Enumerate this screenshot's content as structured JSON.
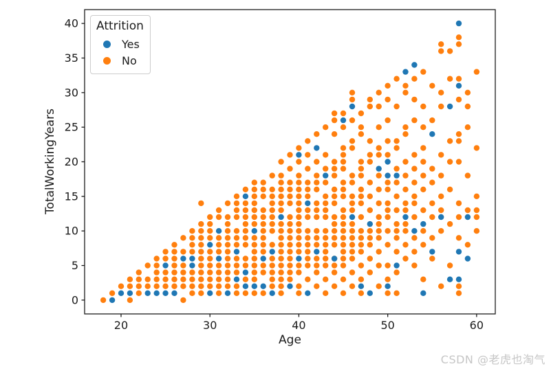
{
  "watermark": {
    "text": "CSDN @老虎也淘气"
  },
  "chart_data": {
    "type": "scatter",
    "title": "",
    "xlabel": "Age",
    "ylabel": "TotalWorkingYears",
    "grid": false,
    "legend": {
      "title": "Attrition",
      "position": "upper left"
    },
    "xlim": [
      15.9,
      62.1
    ],
    "ylim": [
      -2,
      42
    ],
    "x_ticks": [
      20,
      30,
      40,
      50,
      60
    ],
    "y_ticks": [
      0,
      5,
      10,
      15,
      20,
      25,
      30,
      35,
      40
    ],
    "series": [
      {
        "name": "Yes",
        "color": "#1f77b4",
        "points_by_age": {
          "19": [
            0
          ],
          "20": [
            1
          ],
          "21": [
            1
          ],
          "23": [
            1
          ],
          "24": [
            1
          ],
          "25": [
            1,
            5
          ],
          "26": [
            1
          ],
          "27": [
            6
          ],
          "28": [
            5,
            6
          ],
          "30": [
            1,
            8
          ],
          "31": [
            6,
            10
          ],
          "32": [
            1
          ],
          "33": [
            3,
            7
          ],
          "34": [
            2,
            4,
            15
          ],
          "35": [
            2,
            10
          ],
          "36": [
            2,
            6
          ],
          "37": [
            1,
            7
          ],
          "38": [
            12
          ],
          "39": [
            2
          ],
          "40": [
            6,
            21
          ],
          "41": [
            1,
            14
          ],
          "42": [
            7,
            22
          ],
          "43": [
            18
          ],
          "44": [
            6
          ],
          "45": [
            26
          ],
          "46": [
            12,
            28
          ],
          "47": [
            2
          ],
          "48": [
            1,
            11
          ],
          "49": [
            19
          ],
          "50": [
            2,
            18,
            20
          ],
          "51": [
            5,
            18
          ],
          "52": [
            12,
            33
          ],
          "53": [
            10,
            34
          ],
          "54": [
            1,
            11
          ],
          "55": [
            7,
            24
          ],
          "56": [
            12
          ],
          "57": [
            3,
            28
          ],
          "58": [
            3,
            7,
            31,
            40
          ],
          "59": [
            6,
            12
          ]
        }
      },
      {
        "name": "No",
        "color": "#ff7f0e",
        "points_by_age": {
          "18": [
            0
          ],
          "19": [
            1
          ],
          "20": [
            2
          ],
          "21": [
            0,
            2,
            3
          ],
          "22": [
            1,
            2,
            3,
            4
          ],
          "23": [
            2,
            3,
            5
          ],
          "24": [
            2,
            3,
            4,
            5,
            6
          ],
          "25": [
            2,
            3,
            4,
            6,
            7
          ],
          "26": [
            2,
            3,
            4,
            5,
            6,
            7,
            8
          ],
          "27": [
            0,
            2,
            3,
            4,
            5,
            7,
            9
          ],
          "28": [
            1,
            2,
            3,
            4,
            7,
            8,
            9,
            10
          ],
          "29": [
            1,
            2,
            3,
            4,
            5,
            6,
            7,
            8,
            9,
            10,
            11,
            14
          ],
          "30": [
            2,
            3,
            4,
            5,
            6,
            7,
            9,
            10,
            11,
            12
          ],
          "31": [
            1,
            2,
            3,
            4,
            5,
            7,
            8,
            9,
            12,
            13
          ],
          "32": [
            2,
            3,
            4,
            5,
            6,
            7,
            8,
            9,
            10,
            11,
            12,
            14
          ],
          "33": [
            1,
            2,
            4,
            5,
            6,
            8,
            9,
            10,
            12,
            13,
            14,
            15
          ],
          "34": [
            1,
            3,
            5,
            6,
            8,
            9,
            10,
            11,
            12,
            13,
            14,
            16
          ],
          "35": [
            1,
            3,
            4,
            5,
            6,
            7,
            8,
            9,
            11,
            12,
            13,
            14,
            15,
            16,
            17
          ],
          "36": [
            1,
            4,
            5,
            7,
            8,
            9,
            10,
            11,
            12,
            13,
            15,
            16,
            17
          ],
          "37": [
            2,
            3,
            4,
            5,
            6,
            8,
            10,
            11,
            12,
            13,
            14,
            15,
            16,
            18
          ],
          "38": [
            1,
            2,
            3,
            4,
            5,
            6,
            7,
            8,
            9,
            10,
            11,
            13,
            14,
            15,
            16,
            17,
            18,
            20
          ],
          "39": [
            3,
            4,
            5,
            6,
            7,
            8,
            9,
            10,
            11,
            12,
            14,
            15,
            16,
            17,
            19,
            21
          ],
          "40": [
            1,
            2,
            4,
            5,
            7,
            8,
            9,
            10,
            11,
            12,
            13,
            14,
            15,
            16,
            17,
            18,
            20,
            22
          ],
          "41": [
            3,
            5,
            6,
            7,
            8,
            9,
            10,
            12,
            13,
            15,
            16,
            17,
            19,
            21,
            23
          ],
          "42": [
            2,
            4,
            5,
            6,
            8,
            9,
            10,
            12,
            13,
            14,
            16,
            17,
            18,
            20,
            24
          ],
          "43": [
            1,
            3,
            5,
            6,
            7,
            8,
            9,
            10,
            12,
            13,
            14,
            15,
            17,
            19,
            21,
            25
          ],
          "44": [
            2,
            4,
            5,
            6,
            8,
            9,
            10,
            11,
            12,
            14,
            15,
            16,
            18,
            19,
            20,
            24,
            26,
            27
          ],
          "45": [
            1,
            3,
            5,
            6,
            7,
            8,
            9,
            10,
            11,
            12,
            13,
            15,
            16,
            17,
            19,
            20,
            21,
            22,
            25,
            27
          ],
          "46": [
            2,
            4,
            6,
            7,
            8,
            9,
            10,
            11,
            13,
            14,
            15,
            17,
            18,
            22,
            23,
            26,
            29,
            30
          ],
          "47": [
            1,
            3,
            5,
            7,
            8,
            9,
            10,
            12,
            14,
            15,
            16,
            18,
            19,
            20,
            24,
            25,
            27
          ],
          "48": [
            4,
            6,
            8,
            9,
            10,
            13,
            15,
            17,
            20,
            21,
            23,
            28,
            29
          ],
          "49": [
            2,
            5,
            7,
            9,
            10,
            11,
            12,
            14,
            16,
            18,
            21,
            22,
            25,
            28,
            30
          ],
          "50": [
            1,
            3,
            5,
            8,
            10,
            12,
            13,
            14,
            16,
            17,
            21,
            23,
            26,
            29,
            31
          ],
          "51": [
            1,
            4,
            7,
            9,
            10,
            11,
            13,
            15,
            17,
            19,
            22,
            23,
            28,
            32
          ],
          "52": [
            6,
            8,
            10,
            11,
            13,
            14,
            16,
            18,
            20,
            24,
            25,
            30,
            31
          ],
          "53": [
            5,
            7,
            9,
            12,
            14,
            15,
            17,
            19,
            21,
            26,
            29,
            32
          ],
          "54": [
            3,
            8,
            10,
            13,
            16,
            18,
            20,
            22,
            25,
            28,
            33
          ],
          "55": [
            6,
            9,
            12,
            14,
            17,
            19,
            26,
            31
          ],
          "56": [
            2,
            10,
            13,
            15,
            18,
            21,
            28,
            30,
            36,
            37
          ],
          "57": [
            5,
            11,
            16,
            20,
            23,
            32,
            36
          ],
          "58": [
            1,
            2,
            9,
            12,
            14,
            20,
            23,
            24,
            29,
            32,
            37,
            38
          ],
          "59": [
            8,
            13,
            18,
            25,
            28,
            30
          ],
          "60": [
            10,
            12,
            13,
            15,
            22,
            33
          ]
        }
      }
    ]
  }
}
